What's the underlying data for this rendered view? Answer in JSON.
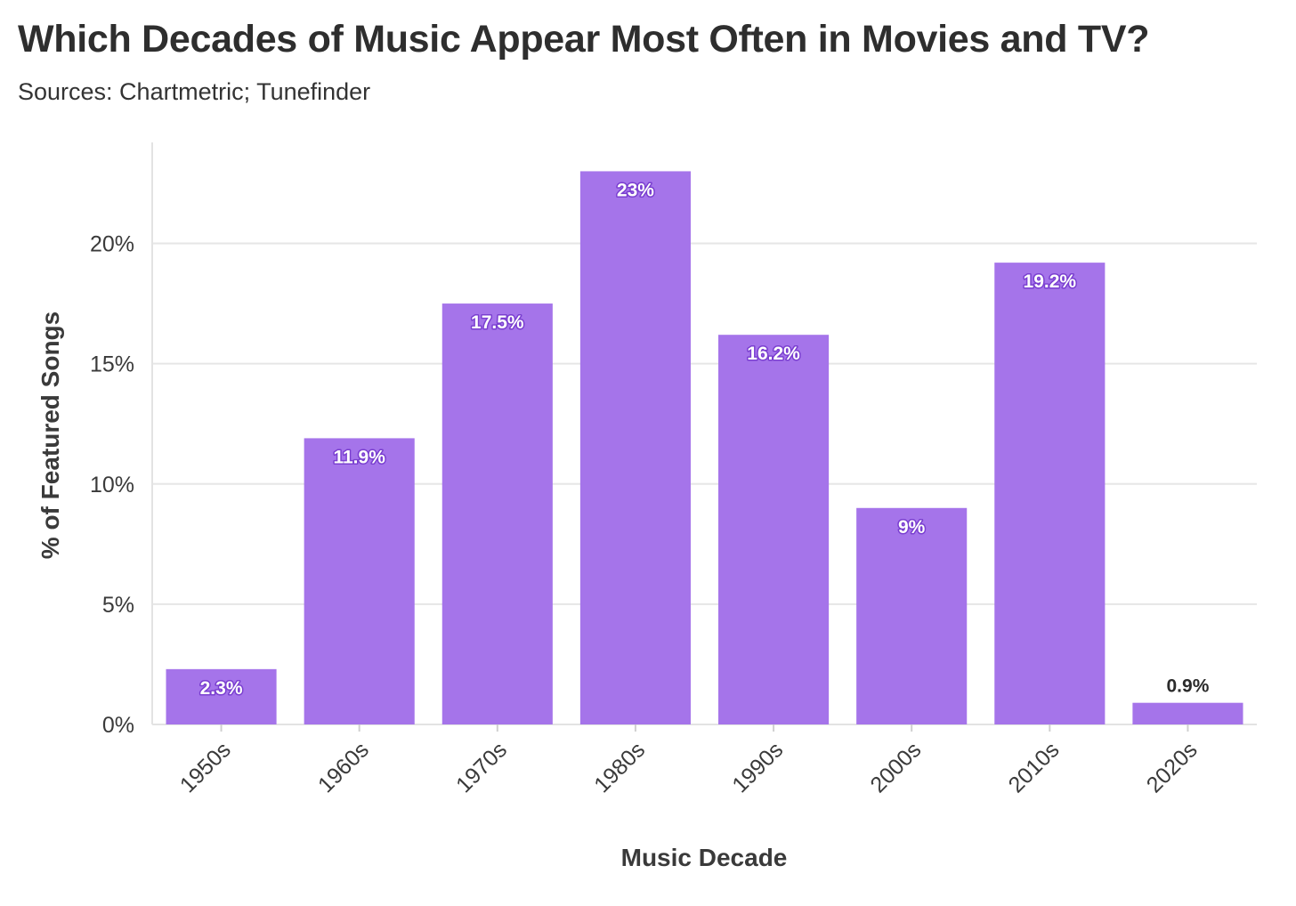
{
  "title": "Which Decades of Music Appear Most Often in Movies and TV?",
  "subtitle": "Sources: Chartmetric; Tunefinder",
  "chart_data": {
    "type": "bar",
    "title": "Which Decades of Music Appear Most Often in Movies and TV?",
    "subtitle": "Sources: Chartmetric; Tunefinder",
    "xlabel": "Music Decade",
    "ylabel": "% of Featured Songs",
    "categories": [
      "1950s",
      "1960s",
      "1970s",
      "1980s",
      "1990s",
      "2000s",
      "2010s",
      "2020s"
    ],
    "values": [
      2.3,
      11.9,
      17.5,
      23,
      16.2,
      9,
      19.2,
      0.9
    ],
    "data_labels": [
      "2.3%",
      "11.9%",
      "17.5%",
      "23%",
      "16.2%",
      "9%",
      "19.2%",
      "0.9%"
    ],
    "ylim": [
      0,
      24.2
    ],
    "yticks": [
      0,
      5,
      10,
      15,
      20
    ],
    "ytick_labels": [
      "0%",
      "5%",
      "10%",
      "15%",
      "20%"
    ],
    "grid": true,
    "legend": "none",
    "bar_color": "#a574ea",
    "label_outline_color": "#7a3fd0"
  }
}
